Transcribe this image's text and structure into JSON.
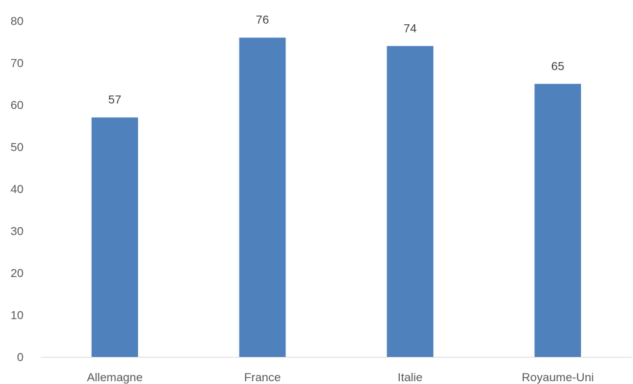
{
  "chart_data": {
    "type": "bar",
    "title": "",
    "xlabel": "",
    "ylabel": "",
    "categories": [
      "Allemagne",
      "France",
      "Italie",
      "Royaume-Uni"
    ],
    "values": [
      57,
      76,
      74,
      65
    ],
    "ylim": [
      0,
      80
    ],
    "yticks": [
      0,
      10,
      20,
      30,
      40,
      50,
      60,
      70,
      80
    ],
    "grid": false,
    "legend": "none",
    "data_labels": true,
    "bar_color": "#4f81bd",
    "axis_color": "#d9d9d9"
  }
}
